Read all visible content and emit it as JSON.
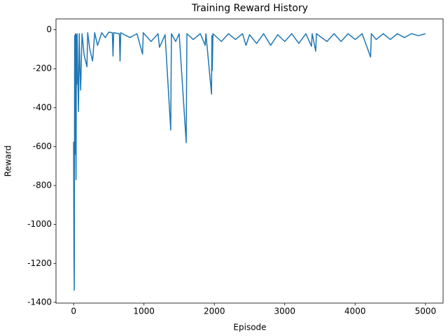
{
  "chart_data": {
    "type": "line",
    "title": "Training Reward History",
    "xlabel": "Episode",
    "ylabel": "Reward",
    "x": [
      0,
      5,
      10,
      15,
      20,
      25,
      30,
      35,
      40,
      45,
      50,
      60,
      70,
      80,
      90,
      100,
      120,
      150,
      190,
      200,
      230,
      270,
      300,
      340,
      400,
      450,
      500,
      550,
      560,
      570,
      650,
      660,
      670,
      800,
      900,
      980,
      990,
      1100,
      1200,
      1220,
      1300,
      1380,
      1390,
      1450,
      1500,
      1600,
      1610,
      1700,
      1800,
      1870,
      1880,
      1960,
      1965,
      1970,
      1980,
      2100,
      2200,
      2300,
      2400,
      2450,
      2500,
      2600,
      2700,
      2800,
      2900,
      3000,
      3100,
      3200,
      3300,
      3380,
      3390,
      3440,
      3450,
      3600,
      3700,
      3800,
      3900,
      4000,
      4100,
      4220,
      4230,
      4300,
      4400,
      4500,
      4600,
      4700,
      4800,
      4900,
      4999
    ],
    "series": [
      {
        "name": "Reward",
        "color": "#1f77b4",
        "values": [
          -575,
          -1150,
          -1338,
          -30,
          -640,
          -20,
          -330,
          -770,
          -25,
          -280,
          -20,
          -250,
          -420,
          -20,
          -200,
          -310,
          -20,
          -130,
          -190,
          -15,
          -100,
          -160,
          -15,
          -80,
          -15,
          -40,
          -12,
          -15,
          -135,
          -15,
          -20,
          -160,
          -15,
          -40,
          -20,
          -125,
          -15,
          -60,
          -20,
          -90,
          -25,
          -515,
          -20,
          -60,
          -20,
          -580,
          -20,
          -50,
          -20,
          -80,
          -20,
          -330,
          -30,
          -210,
          -20,
          -60,
          -20,
          -50,
          -20,
          -80,
          -25,
          -70,
          -20,
          -80,
          -25,
          -60,
          -20,
          -70,
          -20,
          -85,
          -20,
          -110,
          -20,
          -60,
          -20,
          -60,
          -20,
          -50,
          -20,
          -140,
          -20,
          -50,
          -20,
          -50,
          -20,
          -40,
          -20,
          -30,
          -20
        ]
      }
    ],
    "xlim": [
      -250,
      5250
    ],
    "ylim": [
      -1404,
      56
    ],
    "xticks": [
      0,
      1000,
      2000,
      3000,
      4000,
      5000
    ],
    "yticks": [
      -1400,
      -1200,
      -1000,
      -800,
      -600,
      -400,
      -200,
      0
    ]
  }
}
